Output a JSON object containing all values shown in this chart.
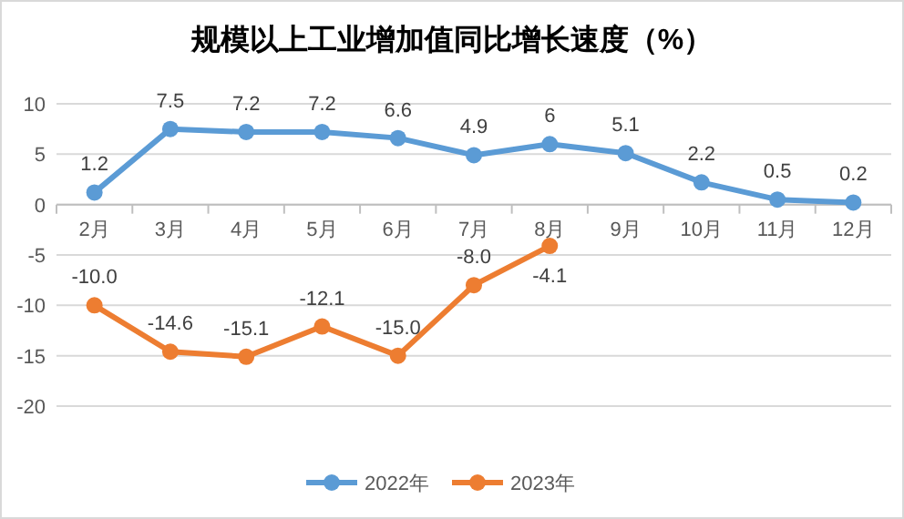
{
  "chart_data": {
    "type": "line",
    "title": "规模以上工业增加值同比增长速度（%）",
    "categories": [
      "2月",
      "3月",
      "4月",
      "5月",
      "6月",
      "7月",
      "8月",
      "9月",
      "10月",
      "11月",
      "12月"
    ],
    "series": [
      {
        "name": "2022年",
        "color": "#5b9bd5",
        "values": [
          1.2,
          7.5,
          7.2,
          7.2,
          6.6,
          4.9,
          6,
          5.1,
          2.2,
          0.5,
          0.2
        ],
        "value_labels": [
          "1.2",
          "7.5",
          "7.2",
          "7.2",
          "6.6",
          "4.9",
          "6",
          "5.1",
          "2.2",
          "0.5",
          "0.2"
        ]
      },
      {
        "name": "2023年",
        "color": "#ed7d31",
        "values": [
          -10.0,
          -14.6,
          -15.1,
          -12.1,
          -15.0,
          -8.0,
          -4.1,
          null,
          null,
          null,
          null
        ],
        "value_labels": [
          "-10.0",
          "-14.6",
          "-15.1",
          "-12.1",
          "-15.0",
          "-8.0",
          "-4.1",
          null,
          null,
          null,
          null
        ]
      }
    ],
    "ylim": [
      -20,
      10
    ],
    "yticks": [
      -20,
      -15,
      -10,
      -5,
      0,
      5,
      10
    ],
    "grid": "y",
    "legend": "bottom",
    "marker": "circle",
    "line_style": "solid"
  }
}
